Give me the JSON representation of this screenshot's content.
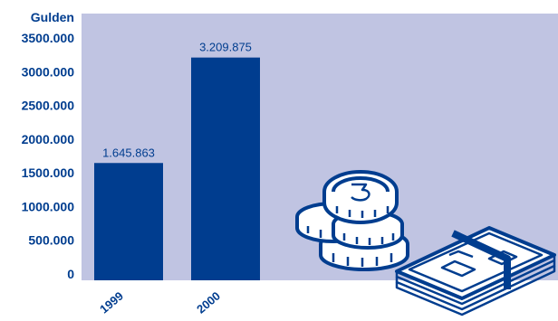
{
  "colors": {
    "plot_background": "#c0c4e2",
    "bar": "#003d8f",
    "text": "#003d8f",
    "money_fill": "#ffffff",
    "money_stroke": "#003d8f"
  },
  "chart_data": {
    "type": "bar",
    "title": "",
    "xlabel": "",
    "ylabel": "Gulden",
    "categories": [
      "1999",
      "2000"
    ],
    "values": [
      1645863,
      3209875
    ],
    "value_labels": [
      "1.645.863",
      "3.209.875"
    ],
    "ylim": [
      0,
      3500000
    ],
    "yticks": [
      0,
      500000,
      1000000,
      1500000,
      2000000,
      2500000,
      3000000,
      3500000
    ],
    "ytick_labels": [
      "0",
      "500.000",
      "1000.000",
      "1500.000",
      "2000.000",
      "2500.000",
      "3000.000",
      "3500.000"
    ],
    "grid": false,
    "legend": "none"
  },
  "decorations": {
    "coins_icon": "coin-stack-icon",
    "banknotes_icon": "banknote-stack-icon"
  }
}
